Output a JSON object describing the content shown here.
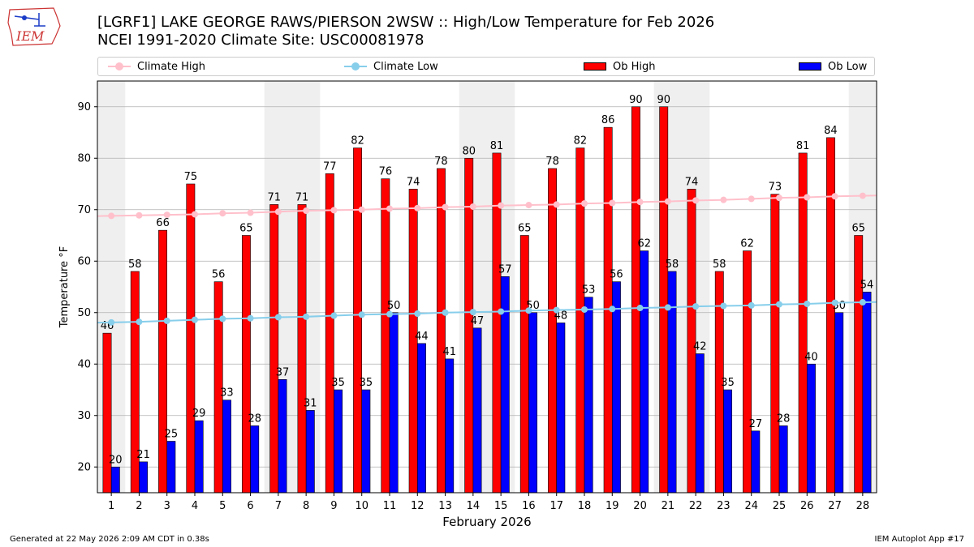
{
  "header": {
    "title_line1": "[LGRF1] LAKE GEORGE RAWS/PIERSON 2WSW :: High/Low Temperature for Feb 2026",
    "title_line2": "NCEI 1991-2020 Climate Site: USC00081978",
    "logo_text": "IEM"
  },
  "legend": {
    "climate_high": "Climate High",
    "climate_low": "Climate Low",
    "ob_high": "Ob High",
    "ob_low": "Ob Low"
  },
  "colors": {
    "ob_high": "#ff0000",
    "ob_low": "#0000ff",
    "climate_high": "#ffc0cb",
    "climate_low": "#87ceeb",
    "weekend_band": "#efefef",
    "grid": "#b0b0b0"
  },
  "footer": {
    "generated": "Generated at 22 May 2026 2:09 AM CDT in 0.38s",
    "app": "IEM Autoplot App #17"
  },
  "chart_data": {
    "type": "bar",
    "xlabel": "February 2026",
    "ylabel": "Temperature °F",
    "ylim": [
      15,
      95
    ],
    "yticks": [
      20,
      30,
      40,
      50,
      60,
      70,
      80,
      90
    ],
    "grid": "horizontal",
    "legend_position": "top",
    "categories": [
      "1",
      "2",
      "3",
      "4",
      "5",
      "6",
      "7",
      "8",
      "9",
      "10",
      "11",
      "12",
      "13",
      "14",
      "15",
      "16",
      "17",
      "18",
      "19",
      "20",
      "21",
      "22",
      "23",
      "24",
      "25",
      "26",
      "27",
      "28"
    ],
    "shaded_days": [
      1,
      7,
      8,
      14,
      15,
      21,
      22,
      28
    ],
    "series": [
      {
        "name": "Ob High",
        "kind": "bar",
        "values": [
          46,
          58,
          66,
          75,
          56,
          65,
          71,
          71,
          77,
          82,
          76,
          74,
          78,
          80,
          81,
          65,
          78,
          82,
          86,
          90,
          90,
          74,
          58,
          62,
          73,
          81,
          84,
          65
        ]
      },
      {
        "name": "Ob Low",
        "kind": "bar",
        "values": [
          20,
          21,
          25,
          29,
          33,
          28,
          37,
          31,
          35,
          35,
          50,
          44,
          41,
          47,
          57,
          50,
          48,
          53,
          56,
          62,
          58,
          42,
          35,
          27,
          28,
          40,
          50,
          54
        ]
      },
      {
        "name": "Climate High",
        "kind": "line",
        "values": [
          68.8,
          68.9,
          69.0,
          69.1,
          69.3,
          69.4,
          69.6,
          69.8,
          69.9,
          70.0,
          70.2,
          70.3,
          70.5,
          70.6,
          70.8,
          70.9,
          71.0,
          71.2,
          71.3,
          71.5,
          71.6,
          71.8,
          71.9,
          72.1,
          72.3,
          72.4,
          72.6,
          72.7
        ]
      },
      {
        "name": "Climate Low",
        "kind": "line",
        "values": [
          48.1,
          48.2,
          48.4,
          48.6,
          48.8,
          48.9,
          49.1,
          49.2,
          49.4,
          49.6,
          49.7,
          49.8,
          50.0,
          50.1,
          50.2,
          50.4,
          50.5,
          50.6,
          50.7,
          50.9,
          51.0,
          51.2,
          51.3,
          51.4,
          51.6,
          51.7,
          51.9,
          52.0
        ]
      }
    ]
  }
}
